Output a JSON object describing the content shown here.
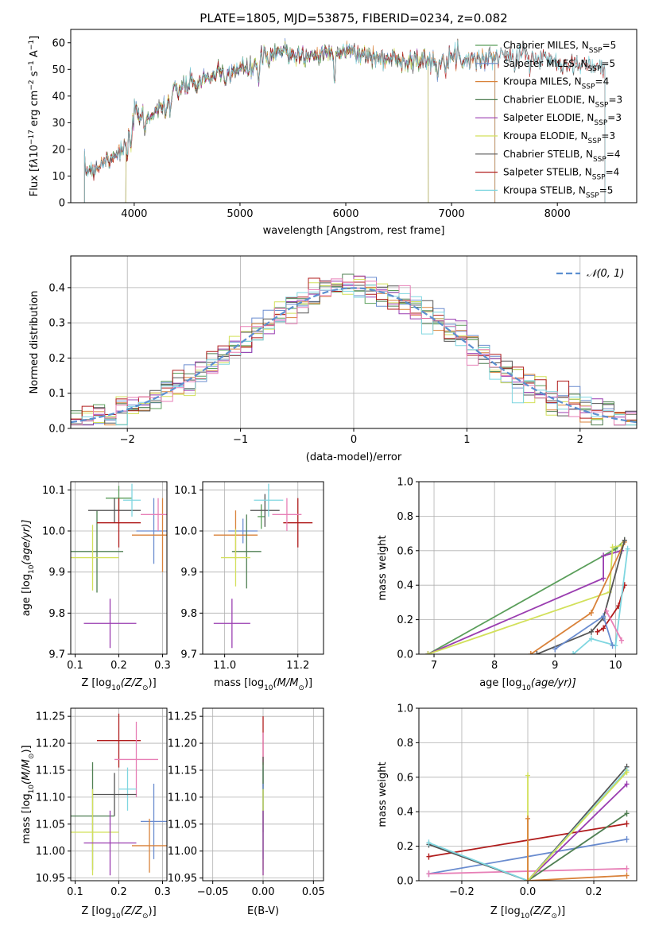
{
  "chart_data": [
    {
      "id": "spectrum",
      "type": "line",
      "title": "PLATE=1805, MJD=53875, FIBERID=0234, z=0.082",
      "xlabel": "wavelength [Angstrom, rest frame]",
      "ylabel_parts": [
        "Flux [f",
        "λ",
        "10",
        "−17",
        " erg cm",
        "−2",
        " s",
        "−1",
        " A",
        "−1",
        "]"
      ],
      "xlim": [
        3400,
        8750
      ],
      "ylim": [
        0,
        65
      ],
      "xticks": [
        4000,
        5000,
        6000,
        7000,
        8000
      ],
      "yticks": [
        0,
        10,
        20,
        30,
        40,
        50,
        60
      ],
      "grid": false,
      "legend_position": "right",
      "anchors": {
        "x": [
          3530,
          3600,
          3700,
          3800,
          3900,
          3970,
          4000,
          4100,
          4200,
          4300,
          4400,
          4500,
          4600,
          4700,
          4800,
          4900,
          5000,
          5100,
          5200,
          5300,
          5400,
          5500,
          5600,
          5700,
          5800,
          5900,
          6000,
          6100,
          6200,
          6300,
          6400,
          6500,
          6600,
          6700,
          6800,
          6900,
          7000,
          7100,
          7200,
          7300,
          7400,
          7500,
          7600,
          7700,
          7800,
          7900,
          8000,
          8100,
          8200,
          8300,
          8400,
          8450
        ],
        "y": [
          13,
          12,
          15,
          18,
          20,
          28,
          33,
          32,
          34,
          38,
          42,
          44,
          45,
          47,
          48,
          49,
          50,
          50,
          54,
          55,
          57,
          56,
          55,
          55,
          56,
          57,
          57,
          56,
          55,
          54,
          54,
          54,
          54,
          53,
          53,
          54,
          55,
          54,
          54,
          54,
          55,
          55,
          55,
          55,
          54,
          54,
          53,
          52,
          52,
          51,
          51,
          50
        ]
      },
      "series": [
        {
          "name": "Chabrier MILES, N_SSP=5",
          "label_parts": [
            "Chabrier MILES, N",
            "SSP",
            "=5"
          ],
          "color": "#5a9e5a",
          "x_range": [
            3530,
            7410
          ]
        },
        {
          "name": "Salpeter MILES, N_SSP=5",
          "label_parts": [
            "Salpeter MILES, N",
            "SSP",
            "=5"
          ],
          "color": "#6a8ccf",
          "x_range": [
            3530,
            7410
          ]
        },
        {
          "name": "Kroupa MILES, N_SSP=4",
          "label_parts": [
            "Kroupa MILES, N",
            "SSP",
            "=4"
          ],
          "color": "#d9823a",
          "x_range": [
            3530,
            7410
          ]
        },
        {
          "name": "Chabrier ELODIE, N_SSP=3",
          "label_parts": [
            "Chabrier ELODIE, N",
            "SSP",
            "=3"
          ],
          "color": "#4f7f52",
          "x_range": [
            3920,
            6780
          ]
        },
        {
          "name": "Salpeter ELODIE, N_SSP=3",
          "label_parts": [
            "Salpeter ELODIE, N",
            "SSP",
            "=3"
          ],
          "color": "#9a3db0",
          "x_range": [
            3920,
            6780
          ]
        },
        {
          "name": "Kroupa ELODIE, N_SSP=3",
          "label_parts": [
            "Kroupa ELODIE, N",
            "SSP",
            "=3"
          ],
          "color": "#d2e05a",
          "x_range": [
            3920,
            6780
          ]
        },
        {
          "name": "Chabrier STELIB, N_SSP=4",
          "label_parts": [
            "Chabrier STELIB, N",
            "SSP",
            "=4"
          ],
          "color": "#555555",
          "x_range": [
            3530,
            8450
          ]
        },
        {
          "name": "Salpeter STELIB, N_SSP=4",
          "label_parts": [
            "Salpeter STELIB, N",
            "SSP",
            "=4"
          ],
          "color": "#b01c1c",
          "x_range": [
            3530,
            8450
          ]
        },
        {
          "name": "Kroupa STELIB, N_SSP=5",
          "label_parts": [
            "Kroupa STELIB, N",
            "SSP",
            "=5"
          ],
          "color": "#7fd6e0",
          "x_range": [
            3530,
            8450
          ]
        }
      ]
    },
    {
      "id": "residuals",
      "type": "step",
      "xlabel": "(data-model)/error",
      "ylabel": "Normed distribution",
      "xlim": [
        -2.5,
        2.5
      ],
      "ylim": [
        0,
        0.49
      ],
      "xticks": [
        -2,
        -1,
        0,
        1,
        2
      ],
      "yticks": [
        0.0,
        0.1,
        0.2,
        0.3,
        0.4
      ],
      "grid": true,
      "legend_position": "top-right",
      "reference_curve": {
        "name": "N(0,1)",
        "mean": 0,
        "sigma": 1,
        "color": "#5b8fd0"
      },
      "bin_width": 0.1,
      "bin_range": [
        -2.5,
        2.5
      ]
    },
    {
      "id": "age-vs-Z",
      "type": "errorbar",
      "xlabel_parts": [
        "Z [log",
        "10",
        "(Z/Z",
        "⊙",
        ")]"
      ],
      "ylabel_parts": [
        "age  [log",
        "10",
        "(age/yr)]"
      ],
      "xlim": [
        0.09,
        0.31
      ],
      "ylim": [
        9.7,
        10.12
      ],
      "xticks": [
        0.1,
        0.2,
        0.3
      ],
      "yticks": [
        9.7,
        9.8,
        9.9,
        10.0,
        10.1
      ],
      "grid": true,
      "points": [
        {
          "x": 0.2,
          "y": 10.08,
          "xerr": 0.03,
          "yerr": 0.03,
          "color": "#5a9e5a"
        },
        {
          "x": 0.28,
          "y": 10.0,
          "xerr": 0.04,
          "yerr": 0.08,
          "color": "#6a8ccf"
        },
        {
          "x": 0.3,
          "y": 9.99,
          "xerr": 0.07,
          "yerr": 0.09,
          "color": "#d9823a"
        },
        {
          "x": 0.15,
          "y": 9.95,
          "xerr": 0.06,
          "yerr": 0.1,
          "color": "#4f7f52"
        },
        {
          "x": 0.18,
          "y": 9.775,
          "xerr": 0.06,
          "yerr": 0.06,
          "color": "#9a3db0"
        },
        {
          "x": 0.14,
          "y": 9.935,
          "xerr": 0.06,
          "yerr": 0.08,
          "color": "#d2e05a"
        },
        {
          "x": 0.19,
          "y": 10.05,
          "xerr": 0.06,
          "yerr": 0.03,
          "color": "#555555"
        },
        {
          "x": 0.2,
          "y": 10.02,
          "xerr": 0.05,
          "yerr": 0.06,
          "color": "#b01c1c"
        },
        {
          "x": 0.23,
          "y": 10.075,
          "xerr": 0.02,
          "yerr": 0.04,
          "color": "#7fd6e0"
        },
        {
          "x": 0.29,
          "y": 10.04,
          "xerr": 0.04,
          "yerr": 0.04,
          "color": "#e77fb6"
        }
      ]
    },
    {
      "id": "age-vs-mass",
      "type": "errorbar",
      "xlabel_parts": [
        "mass [log",
        "10",
        "(M/M",
        "⊙",
        ")]"
      ],
      "xlim": [
        10.94,
        11.27
      ],
      "ylim": [
        9.7,
        10.12
      ],
      "xticks": [
        11.0,
        11.2
      ],
      "yticks": [
        9.7,
        9.8,
        9.9,
        10.0,
        10.1
      ],
      "grid": true,
      "points": [
        {
          "x": 11.1,
          "y": 10.035,
          "xerr": 0.01,
          "yerr": 0.03,
          "color": "#5a9e5a"
        },
        {
          "x": 11.05,
          "y": 10.0,
          "xerr": 0.04,
          "yerr": 0.03,
          "color": "#6a8ccf"
        },
        {
          "x": 11.03,
          "y": 9.99,
          "xerr": 0.06,
          "yerr": 0.06,
          "color": "#d9823a"
        },
        {
          "x": 11.06,
          "y": 9.95,
          "xerr": 0.04,
          "yerr": 0.09,
          "color": "#4f7f52"
        },
        {
          "x": 11.02,
          "y": 9.775,
          "xerr": 0.05,
          "yerr": 0.06,
          "color": "#9a3db0"
        },
        {
          "x": 11.03,
          "y": 9.935,
          "xerr": 0.04,
          "yerr": 0.07,
          "color": "#d2e05a"
        },
        {
          "x": 11.11,
          "y": 10.05,
          "xerr": 0.04,
          "yerr": 0.04,
          "color": "#555555"
        },
        {
          "x": 11.2,
          "y": 10.02,
          "xerr": 0.04,
          "yerr": 0.06,
          "color": "#b01c1c"
        },
        {
          "x": 11.12,
          "y": 10.075,
          "xerr": 0.04,
          "yerr": 0.04,
          "color": "#7fd6e0"
        },
        {
          "x": 11.17,
          "y": 10.04,
          "xerr": 0.04,
          "yerr": 0.04,
          "color": "#e77fb6"
        }
      ]
    },
    {
      "id": "massweight-vs-age",
      "type": "line",
      "xlabel_parts": [
        "age  [log",
        "10",
        "(age/yr)]"
      ],
      "ylabel": "mass weight",
      "xlim": [
        6.75,
        10.35
      ],
      "ylim": [
        0,
        1
      ],
      "xticks": [
        7,
        8,
        9,
        10
      ],
      "yticks": [
        0.0,
        0.2,
        0.4,
        0.6,
        0.8,
        1.0
      ],
      "grid": true,
      "series": [
        {
          "color": "#5a9e5a",
          "points": [
            [
              6.9,
              0.0
            ],
            [
              10.0,
              0.61
            ],
            [
              10.15,
              0.66
            ]
          ]
        },
        {
          "color": "#9a3db0",
          "points": [
            [
              6.9,
              0.0
            ],
            [
              9.8,
              0.44
            ],
            [
              9.8,
              0.57
            ],
            [
              10.1,
              0.6
            ]
          ]
        },
        {
          "color": "#d2e05a",
          "points": [
            [
              6.9,
              0.0
            ],
            [
              9.9,
              0.36
            ],
            [
              9.95,
              0.62
            ],
            [
              10.1,
              0.63
            ]
          ]
        },
        {
          "color": "#d9823a",
          "points": [
            [
              8.6,
              0.0
            ],
            [
              9.6,
              0.24
            ],
            [
              10.15,
              0.65
            ]
          ]
        },
        {
          "color": "#555555",
          "points": [
            [
              8.7,
              0.0
            ],
            [
              9.6,
              0.13
            ],
            [
              9.8,
              0.21
            ],
            [
              10.15,
              0.66
            ]
          ]
        },
        {
          "color": "#b01c1c",
          "points": [
            [
              9.7,
              0.13
            ],
            [
              9.8,
              0.15
            ],
            [
              10.05,
              0.28
            ],
            [
              10.15,
              0.4
            ]
          ]
        },
        {
          "color": "#7fd6e0",
          "points": [
            [
              9.3,
              0.0
            ],
            [
              9.6,
              0.09
            ],
            [
              10.0,
              0.05
            ],
            [
              10.2,
              0.61
            ]
          ]
        },
        {
          "color": "#6a8ccf",
          "points": [
            [
              9.0,
              0.03
            ],
            [
              9.8,
              0.22
            ],
            [
              9.95,
              0.05
            ]
          ]
        },
        {
          "color": "#e77fb6",
          "points": [
            [
              9.85,
              0.25
            ],
            [
              10.1,
              0.08
            ]
          ]
        }
      ]
    },
    {
      "id": "mass-vs-Z",
      "type": "errorbar",
      "xlabel_parts": [
        "Z [log",
        "10",
        "(Z/Z",
        "⊙",
        ")]"
      ],
      "ylabel_parts": [
        "mass [log",
        "10",
        "(M/M",
        "⊙",
        ")]"
      ],
      "xlim": [
        0.09,
        0.31
      ],
      "ylim": [
        10.945,
        11.265
      ],
      "xticks": [
        0.1,
        0.2,
        0.3
      ],
      "yticks": [
        10.95,
        11.0,
        11.05,
        11.1,
        11.15,
        11.2,
        11.25
      ],
      "grid": true,
      "points": [
        {
          "x": 0.2,
          "y": 11.205,
          "xerr": 0.05,
          "yerr": 0.05,
          "color": "#b01c1c"
        },
        {
          "x": 0.24,
          "y": 11.17,
          "xerr": 0.05,
          "yerr": 0.07,
          "color": "#e77fb6"
        },
        {
          "x": 0.22,
          "y": 11.115,
          "xerr": 0.02,
          "yerr": 0.04,
          "color": "#7fd6e0"
        },
        {
          "x": 0.19,
          "y": 11.105,
          "xerr": 0.05,
          "yerr": 0.04,
          "color": "#555555"
        },
        {
          "x": 0.14,
          "y": 11.065,
          "xerr": 0.05,
          "yerr": 0.1,
          "color": "#4f7f52"
        },
        {
          "x": 0.28,
          "y": 11.055,
          "xerr": 0.03,
          "yerr": 0.07,
          "color": "#6a8ccf"
        },
        {
          "x": 0.14,
          "y": 11.035,
          "xerr": 0.06,
          "yerr": 0.08,
          "color": "#d2e05a"
        },
        {
          "x": 0.18,
          "y": 11.015,
          "xerr": 0.06,
          "yerr": 0.06,
          "color": "#9a3db0"
        },
        {
          "x": 0.27,
          "y": 11.01,
          "xerr": 0.04,
          "yerr": 0.05,
          "color": "#d9823a"
        }
      ]
    },
    {
      "id": "mass-vs-EBV",
      "type": "errorbar",
      "xlabel": "E(B-V)",
      "xlim": [
        -0.06,
        0.06
      ],
      "ylim": [
        10.945,
        11.265
      ],
      "xticks": [
        -0.05,
        0.0,
        0.05
      ],
      "yticks": [
        10.95,
        11.0,
        11.05,
        11.1,
        11.15,
        11.2,
        11.25
      ],
      "grid": true,
      "points": [
        {
          "x": 0.0,
          "y": 11.205,
          "yerr": 0.045,
          "color": "#b01c1c"
        },
        {
          "x": 0.0,
          "y": 11.17,
          "yerr": 0.05,
          "color": "#e77fb6"
        },
        {
          "x": 0.0,
          "y": 11.115,
          "yerr": 0.04,
          "color": "#7fd6e0"
        },
        {
          "x": 0.0,
          "y": 11.105,
          "yerr": 0.07,
          "color": "#555555"
        },
        {
          "x": 0.0,
          "y": 11.065,
          "yerr": 0.1,
          "color": "#4f7f52"
        },
        {
          "x": 0.0,
          "y": 11.055,
          "yerr": 0.07,
          "color": "#6a8ccf"
        },
        {
          "x": 0.0,
          "y": 11.035,
          "yerr": 0.08,
          "color": "#d2e05a"
        },
        {
          "x": 0.0,
          "y": 11.015,
          "yerr": 0.06,
          "color": "#9a3db0"
        }
      ]
    },
    {
      "id": "massweight-vs-Z",
      "type": "line",
      "xlabel_parts": [
        "Z [log",
        "10",
        "(Z/Z",
        "⊙",
        ")]"
      ],
      "ylabel": "mass weight",
      "xlim": [
        -0.33,
        0.33
      ],
      "ylim": [
        0,
        1
      ],
      "xticks": [
        -0.2,
        0.0,
        0.2
      ],
      "yticks": [
        0.0,
        0.2,
        0.4,
        0.6,
        0.8,
        1.0
      ],
      "grid": true,
      "series": [
        {
          "color": "#b01c1c",
          "points": [
            [
              -0.3,
              0.14
            ],
            [
              0.3,
              0.33
            ]
          ]
        },
        {
          "color": "#6a8ccf",
          "points": [
            [
              -0.3,
              0.04
            ],
            [
              0.3,
              0.24
            ]
          ]
        },
        {
          "color": "#e77fb6",
          "points": [
            [
              -0.3,
              0.04
            ],
            [
              0.3,
              0.07
            ]
          ]
        },
        {
          "color": "#555555",
          "points": [
            [
              -0.3,
              0.21
            ],
            [
              0.0,
              0.0
            ],
            [
              0.3,
              0.66
            ]
          ]
        },
        {
          "color": "#7fd6e0",
          "points": [
            [
              -0.3,
              0.22
            ],
            [
              0.0,
              0.0
            ],
            [
              0.3,
              0.64
            ]
          ]
        },
        {
          "color": "#9a3db0",
          "points": [
            [
              0.0,
              0.0
            ],
            [
              0.3,
              0.56
            ]
          ]
        },
        {
          "color": "#4f7f52",
          "points": [
            [
              0.0,
              0.0
            ],
            [
              0.3,
              0.39
            ]
          ]
        },
        {
          "color": "#d2e05a",
          "points": [
            [
              0.0,
              0.61
            ],
            [
              0.0,
              0.0
            ],
            [
              0.3,
              0.63
            ]
          ]
        },
        {
          "color": "#d9823a",
          "points": [
            [
              0.0,
              0.36
            ],
            [
              0.0,
              0.0
            ],
            [
              0.3,
              0.03
            ]
          ]
        }
      ]
    }
  ]
}
